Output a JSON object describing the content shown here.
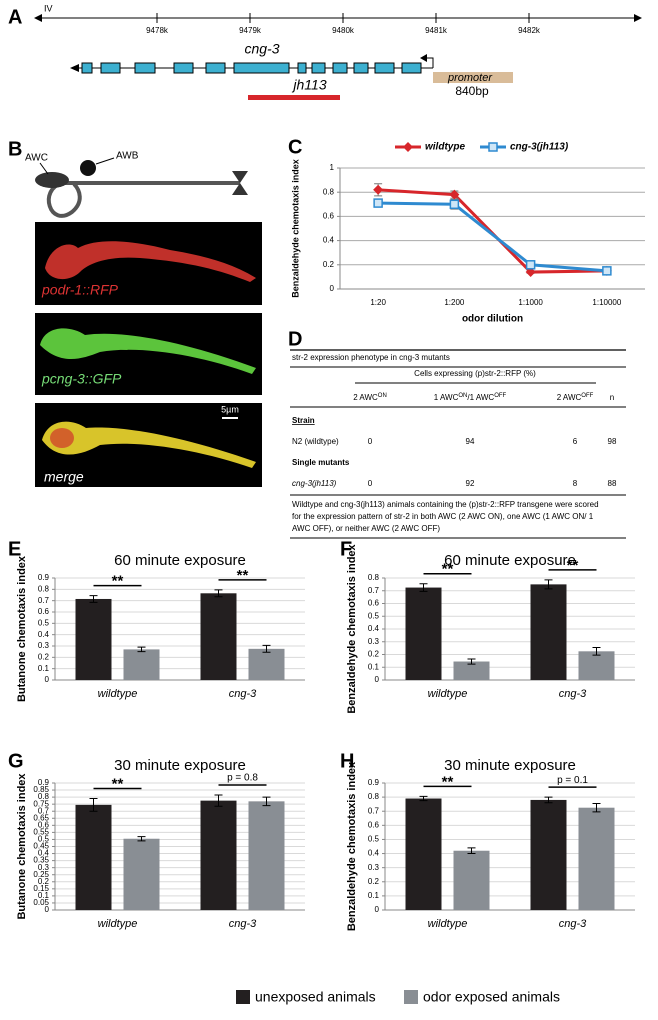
{
  "panel_a": {
    "label": "A",
    "chromosome": "IV",
    "ticks": [
      "9478k",
      "9479k",
      "9480k",
      "9481k",
      "9482k"
    ],
    "gene": "cng-3",
    "allele": "jh113",
    "promoter": "promoter",
    "promoter_size": "840bp"
  },
  "panel_b": {
    "label": "B",
    "neurons": [
      "AWC",
      "AWB"
    ],
    "images": [
      "podr-1::RFP",
      "pcng-3::GFP",
      "merge"
    ],
    "scale_bar": "5µm"
  },
  "panel_d": {
    "label": "D",
    "title": "str-2 expression phenotype in cng-3 mutants",
    "group_header": "Cells expressing (p)str-2::RFP (%)",
    "columns": [
      [
        {
          "t": "2 AWC"
        },
        {
          "t": "ON",
          "sup": true
        }
      ],
      [
        {
          "t": "1 AWC"
        },
        {
          "t": "ON",
          "sup": true
        },
        {
          "t": "/1 AWC"
        },
        {
          "t": "OFF",
          "sup": true
        }
      ],
      [
        {
          "t": "2 AWC"
        },
        {
          "t": "OFF",
          "sup": true
        }
      ],
      [
        {
          "t": "n"
        }
      ]
    ],
    "sections": [
      {
        "heading": "Strain",
        "rows": [
          {
            "label": "N2 (wildtype)",
            "values": [
              0,
              94,
              6,
              98
            ]
          }
        ]
      },
      {
        "heading": "Single mutants",
        "rows": [
          {
            "label": "cng-3(jh113)",
            "values": [
              0,
              92,
              8,
              88
            ]
          }
        ]
      }
    ],
    "footnote": [
      "Wildtype and cng-3(jh113) animals containing the (p)str-2::RFP transgene were scored",
      "for the expression pattern of str-2 in both AWC (2 AWC ON), one AWC (1 AWC ON/ 1",
      "AWC OFF), or neither AWC (2 AWC OFF)"
    ]
  },
  "chart_data": [
    {
      "panel": "C",
      "type": "line",
      "categories": [
        "1:20",
        "1:200",
        "1:1000",
        "1:10000"
      ],
      "xlabel": "odor dilution",
      "ylabel": "Benzaldehyde chemotaxis index",
      "ylim": [
        0,
        1
      ],
      "yticks": [
        0,
        0.2,
        0.4,
        0.6,
        0.8,
        1
      ],
      "grid": true,
      "series": [
        {
          "name": "wildtype",
          "color": "#d7262b",
          "marker": "diamond",
          "values": [
            0.82,
            0.78,
            0.14,
            0.15
          ],
          "errors": [
            0.05,
            0.03,
            0.01,
            0.02
          ]
        },
        {
          "name": "cng-3(jh113)",
          "color": "#2e8ad0",
          "marker": "square",
          "values": [
            0.71,
            0.7,
            0.2,
            0.15
          ],
          "errors": [
            0.03,
            0.04,
            0.02,
            0.03
          ]
        }
      ]
    },
    {
      "panel": "E",
      "type": "bar",
      "title": "60 minute exposure",
      "categories": [
        "wildtype",
        "cng-3"
      ],
      "ylabel": "Butanone chemotaxis index",
      "ylim": [
        0,
        0.9
      ],
      "yticks": [
        0,
        0.1,
        0.2,
        0.3,
        0.4,
        0.5,
        0.6,
        0.7,
        0.8,
        0.9
      ],
      "grid": true,
      "series": [
        {
          "name": "unexposed animals",
          "color": "#231f20",
          "values": [
            0.715,
            0.765
          ],
          "errors": [
            0.03,
            0.03
          ]
        },
        {
          "name": "odor exposed animals",
          "color": "#898e94",
          "values": [
            0.27,
            0.275
          ],
          "errors": [
            0.02,
            0.03
          ]
        }
      ],
      "annotations": [
        "**",
        "**"
      ]
    },
    {
      "panel": "F",
      "type": "bar",
      "title": "60 minute exposure",
      "categories": [
        "wildtype",
        "cng-3"
      ],
      "ylabel": "Benzaldehyde chemotaxis index",
      "ylim": [
        0,
        0.8
      ],
      "yticks": [
        0,
        0.1,
        0.2,
        0.3,
        0.4,
        0.5,
        0.6,
        0.7,
        0.8
      ],
      "grid": true,
      "series": [
        {
          "name": "unexposed animals",
          "color": "#231f20",
          "values": [
            0.725,
            0.75
          ],
          "errors": [
            0.03,
            0.035
          ]
        },
        {
          "name": "odor exposed animals",
          "color": "#898e94",
          "values": [
            0.145,
            0.225
          ],
          "errors": [
            0.02,
            0.03
          ]
        }
      ],
      "annotations": [
        "**",
        "**"
      ]
    },
    {
      "panel": "G",
      "type": "bar",
      "title": "30 minute exposure",
      "categories": [
        "wildtype",
        "cng-3"
      ],
      "ylabel": "Butanone chemotaxis index",
      "ylim": [
        0,
        0.9
      ],
      "yticks": [
        0,
        0.05,
        0.1,
        0.15,
        0.2,
        0.25,
        0.3,
        0.35,
        0.4,
        0.45,
        0.5,
        0.55,
        0.6,
        0.65,
        0.7,
        0.75,
        0.8,
        0.85,
        0.9
      ],
      "grid": true,
      "series": [
        {
          "name": "unexposed animals",
          "color": "#231f20",
          "values": [
            0.745,
            0.775
          ],
          "errors": [
            0.045,
            0.04
          ]
        },
        {
          "name": "odor exposed animals",
          "color": "#898e94",
          "values": [
            0.505,
            0.77
          ],
          "errors": [
            0.015,
            0.03
          ]
        }
      ],
      "annotations": [
        "**",
        "p = 0.8"
      ]
    },
    {
      "panel": "H",
      "type": "bar",
      "title": "30 minute exposure",
      "categories": [
        "wildtype",
        "cng-3"
      ],
      "ylabel": "Benzaldehyde chemotaxis index",
      "ylim": [
        0,
        0.9
      ],
      "yticks": [
        0,
        0.1,
        0.2,
        0.3,
        0.4,
        0.5,
        0.6,
        0.7,
        0.8,
        0.9
      ],
      "grid": true,
      "series": [
        {
          "name": "unexposed animals",
          "color": "#231f20",
          "values": [
            0.79,
            0.78
          ],
          "errors": [
            0.015,
            0.02
          ]
        },
        {
          "name": "odor exposed animals",
          "color": "#898e94",
          "values": [
            0.42,
            0.725
          ],
          "errors": [
            0.02,
            0.03
          ]
        }
      ],
      "annotations": [
        "**",
        "p = 0.1"
      ]
    }
  ]
}
